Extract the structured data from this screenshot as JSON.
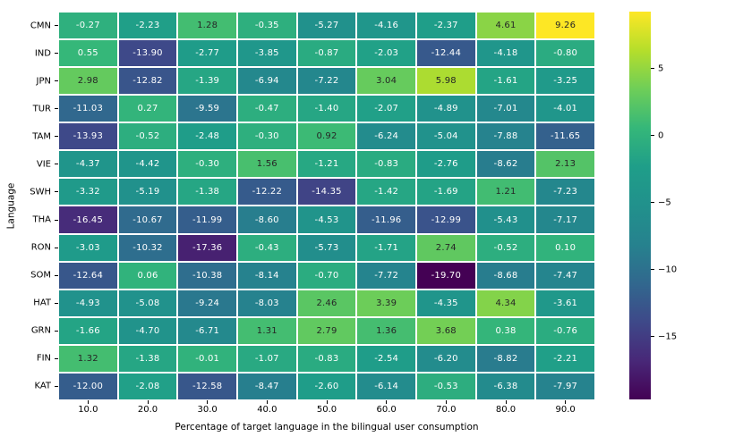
{
  "chart_data": {
    "type": "heatmap",
    "title": "",
    "xlabel": "Percentage of target language in the bilingual user consumption",
    "ylabel": "Language",
    "rows": [
      "CMN",
      "IND",
      "JPN",
      "TUR",
      "TAM",
      "VIE",
      "SWH",
      "THA",
      "RON",
      "SOM",
      "HAT",
      "GRN",
      "FIN",
      "KAT"
    ],
    "columns": [
      "10.0",
      "20.0",
      "30.0",
      "40.0",
      "50.0",
      "60.0",
      "70.0",
      "80.0",
      "90.0"
    ],
    "values": [
      [
        -0.27,
        -2.23,
        1.28,
        -0.35,
        -5.27,
        -4.16,
        -2.37,
        4.61,
        9.26
      ],
      [
        0.55,
        -13.9,
        -2.77,
        -3.85,
        -0.87,
        -2.03,
        -12.44,
        -4.18,
        -0.8
      ],
      [
        2.98,
        -12.82,
        -1.39,
        -6.94,
        -7.22,
        3.04,
        5.98,
        -1.61,
        -3.25
      ],
      [
        -11.03,
        0.27,
        -9.59,
        -0.47,
        -1.4,
        -2.07,
        -4.89,
        -7.01,
        -4.01
      ],
      [
        -13.93,
        -0.52,
        -2.48,
        -0.3,
        0.92,
        -6.24,
        -5.04,
        -7.88,
        -11.65
      ],
      [
        -4.37,
        -4.42,
        -0.3,
        1.56,
        -1.21,
        -0.83,
        -2.76,
        -8.62,
        2.13
      ],
      [
        -3.32,
        -5.19,
        -1.38,
        -12.22,
        -14.35,
        -1.42,
        -1.69,
        1.21,
        -7.23
      ],
      [
        -16.45,
        -10.67,
        -11.99,
        -8.6,
        -4.53,
        -11.96,
        -12.99,
        -5.43,
        -7.17
      ],
      [
        -3.03,
        -10.32,
        -17.36,
        -0.43,
        -5.73,
        -1.71,
        2.74,
        -0.52,
        0.1
      ],
      [
        -12.64,
        0.06,
        -10.38,
        -8.14,
        -0.7,
        -7.72,
        -19.7,
        -8.68,
        -7.47
      ],
      [
        -4.93,
        -5.08,
        -9.24,
        -8.03,
        2.46,
        3.39,
        -4.35,
        4.34,
        -3.61
      ],
      [
        -1.66,
        -4.7,
        -6.71,
        1.31,
        2.79,
        1.36,
        3.68,
        0.38,
        -0.76
      ],
      [
        1.32,
        -1.38,
        -0.01,
        -1.07,
        -0.83,
        -2.54,
        -6.2,
        -8.82,
        -2.21
      ],
      [
        -12.0,
        -2.08,
        -12.58,
        -8.47,
        -2.6,
        -6.14,
        -0.53,
        -6.38,
        -7.97
      ]
    ],
    "value_decimals": 2,
    "vmin": -19.7,
    "vmax": 9.26,
    "colormap": "viridis",
    "colormap_stops": [
      "#440154",
      "#482878",
      "#3e4989",
      "#31688e",
      "#26828e",
      "#21918c",
      "#1f9e89",
      "#35b779",
      "#6ece58",
      "#b5de2b",
      "#fde725"
    ],
    "colorbar_ticks": [
      {
        "label": "5",
        "value": 5
      },
      {
        "label": "0",
        "value": 0
      },
      {
        "label": "−5",
        "value": -5
      },
      {
        "label": "−10",
        "value": -10
      },
      {
        "label": "−15",
        "value": -15
      }
    ],
    "legend_position": "right",
    "grid_line_color": "#ffffff",
    "background_color": "#ffffff",
    "annotation_colors": {
      "dark_text": "#262626",
      "light_text": "#ffffff"
    }
  }
}
